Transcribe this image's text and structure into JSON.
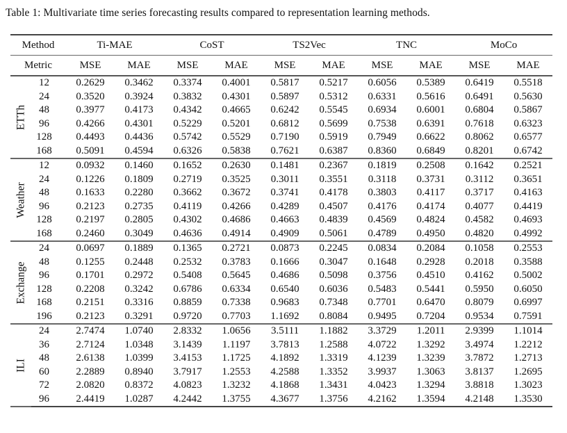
{
  "caption": "Table 1: Multivariate time series forecasting results compared to representation learning methods.",
  "header": {
    "method_label": "Method",
    "metric_label": "Metric",
    "methods": [
      "Ti-MAE",
      "CoST",
      "TS2Vec",
      "TNC",
      "MoCo"
    ],
    "metrics": [
      "MSE",
      "MAE"
    ]
  },
  "groups": [
    {
      "name": "ETTh",
      "rows": [
        {
          "h": "12",
          "v": [
            "0.2629",
            "0.3462",
            "0.3374",
            "0.4001",
            "0.5817",
            "0.5217",
            "0.6056",
            "0.5389",
            "0.6419",
            "0.5518"
          ],
          "bold": [
            0,
            1
          ]
        },
        {
          "h": "24",
          "v": [
            "0.3520",
            "0.3924",
            "0.3832",
            "0.4301",
            "0.5897",
            "0.5312",
            "0.6331",
            "0.5616",
            "0.6491",
            "0.5630"
          ],
          "bold": [
            0,
            1
          ]
        },
        {
          "h": "48",
          "v": [
            "0.3977",
            "0.4173",
            "0.4342",
            "0.4665",
            "0.6242",
            "0.5545",
            "0.6934",
            "0.6001",
            "0.6804",
            "0.5867"
          ],
          "bold": [
            0,
            1
          ]
        },
        {
          "h": "96",
          "v": [
            "0.4266",
            "0.4301",
            "0.5229",
            "0.5201",
            "0.6812",
            "0.5699",
            "0.7538",
            "0.6391",
            "0.7618",
            "0.6323"
          ],
          "bold": [
            0,
            1
          ]
        },
        {
          "h": "128",
          "v": [
            "0.4493",
            "0.4436",
            "0.5742",
            "0.5529",
            "0.7190",
            "0.5919",
            "0.7949",
            "0.6622",
            "0.8062",
            "0.6577"
          ],
          "bold": [
            0,
            1
          ]
        },
        {
          "h": "168",
          "v": [
            "0.5091",
            "0.4594",
            "0.6326",
            "0.5838",
            "0.7621",
            "0.6387",
            "0.8360",
            "0.6849",
            "0.8201",
            "0.6742"
          ],
          "bold": [
            0,
            1
          ]
        }
      ]
    },
    {
      "name": "Weather",
      "rows": [
        {
          "h": "12",
          "v": [
            "0.0932",
            "0.1460",
            "0.1652",
            "0.2630",
            "0.1481",
            "0.2367",
            "0.1819",
            "0.2508",
            "0.1642",
            "0.2521"
          ],
          "bold": [
            0,
            1
          ]
        },
        {
          "h": "24",
          "v": [
            "0.1226",
            "0.1809",
            "0.2719",
            "0.3525",
            "0.3011",
            "0.3551",
            "0.3118",
            "0.3731",
            "0.3112",
            "0.3651"
          ],
          "bold": [
            0,
            1
          ]
        },
        {
          "h": "48",
          "v": [
            "0.1633",
            "0.2280",
            "0.3662",
            "0.3672",
            "0.3741",
            "0.4178",
            "0.3803",
            "0.4117",
            "0.3717",
            "0.4163"
          ],
          "bold": [
            0,
            1
          ]
        },
        {
          "h": "96",
          "v": [
            "0.2123",
            "0.2735",
            "0.4119",
            "0.4266",
            "0.4289",
            "0.4507",
            "0.4176",
            "0.4174",
            "0.4077",
            "0.4419"
          ],
          "bold": [
            0,
            1
          ]
        },
        {
          "h": "128",
          "v": [
            "0.2197",
            "0.2805",
            "0.4302",
            "0.4686",
            "0.4663",
            "0.4839",
            "0.4569",
            "0.4824",
            "0.4582",
            "0.4693"
          ],
          "bold": [
            0,
            1
          ]
        },
        {
          "h": "168",
          "v": [
            "0.2460",
            "0.3049",
            "0.4636",
            "0.4914",
            "0.4909",
            "0.5061",
            "0.4789",
            "0.4950",
            "0.4820",
            "0.4992"
          ],
          "bold": [
            0,
            1
          ]
        }
      ]
    },
    {
      "name": "Exchange",
      "rows": [
        {
          "h": "24",
          "v": [
            "0.0697",
            "0.1889",
            "0.1365",
            "0.2721",
            "0.0873",
            "0.2245",
            "0.0834",
            "0.2084",
            "0.1058",
            "0.2553"
          ],
          "bold": [
            0,
            1
          ]
        },
        {
          "h": "48",
          "v": [
            "0.1255",
            "0.2448",
            "0.2532",
            "0.3783",
            "0.1666",
            "0.3047",
            "0.1648",
            "0.2928",
            "0.2018",
            "0.3588"
          ],
          "bold": [
            0,
            1
          ]
        },
        {
          "h": "96",
          "v": [
            "0.1701",
            "0.2972",
            "0.5408",
            "0.5645",
            "0.4686",
            "0.5098",
            "0.3756",
            "0.4510",
            "0.4162",
            "0.5002"
          ],
          "bold": [
            0,
            1
          ]
        },
        {
          "h": "128",
          "v": [
            "0.2208",
            "0.3242",
            "0.6786",
            "0.6334",
            "0.6540",
            "0.6036",
            "0.5483",
            "0.5441",
            "0.5950",
            "0.6050"
          ],
          "bold": [
            0,
            1
          ]
        },
        {
          "h": "168",
          "v": [
            "0.2151",
            "0.3316",
            "0.8859",
            "0.7338",
            "0.9683",
            "0.7348",
            "0.7701",
            "0.6470",
            "0.8079",
            "0.6997"
          ],
          "bold": [
            0,
            1
          ]
        },
        {
          "h": "196",
          "v": [
            "0.2123",
            "0.3291",
            "0.9720",
            "0.7703",
            "1.1692",
            "0.8084",
            "0.9495",
            "0.7204",
            "0.9534",
            "0.7591"
          ],
          "bold": [
            0,
            1
          ]
        }
      ]
    },
    {
      "name": "ILI",
      "rows": [
        {
          "h": "24",
          "v": [
            "2.7474",
            "1.0740",
            "2.8332",
            "1.0656",
            "3.5111",
            "1.1882",
            "3.3729",
            "1.2011",
            "2.9399",
            "1.1014"
          ],
          "bold": [
            0,
            3
          ]
        },
        {
          "h": "36",
          "v": [
            "2.7124",
            "1.0348",
            "3.1439",
            "1.1197",
            "3.7813",
            "1.2588",
            "4.0722",
            "1.3292",
            "3.4974",
            "1.2212"
          ],
          "bold": [
            0,
            1
          ]
        },
        {
          "h": "48",
          "v": [
            "2.6138",
            "1.0399",
            "3.4153",
            "1.1725",
            "4.1892",
            "1.3319",
            "4.1239",
            "1.3239",
            "3.7872",
            "1.2713"
          ],
          "bold": [
            0,
            1
          ]
        },
        {
          "h": "60",
          "v": [
            "2.2889",
            "0.8940",
            "3.7917",
            "1.2553",
            "4.2588",
            "1.3352",
            "3.9937",
            "1.3063",
            "3.8137",
            "1.2695"
          ],
          "bold": [
            0,
            1
          ]
        },
        {
          "h": "72",
          "v": [
            "2.0820",
            "0.8372",
            "4.0823",
            "1.3232",
            "4.1868",
            "1.3431",
            "4.0423",
            "1.3294",
            "3.8818",
            "1.3023"
          ],
          "bold": [
            0,
            1
          ]
        },
        {
          "h": "96",
          "v": [
            "2.4419",
            "1.0287",
            "4.2442",
            "1.3755",
            "4.3677",
            "1.3756",
            "4.2162",
            "1.3594",
            "4.2148",
            "1.3530"
          ],
          "bold": [
            0,
            1
          ]
        }
      ]
    }
  ]
}
